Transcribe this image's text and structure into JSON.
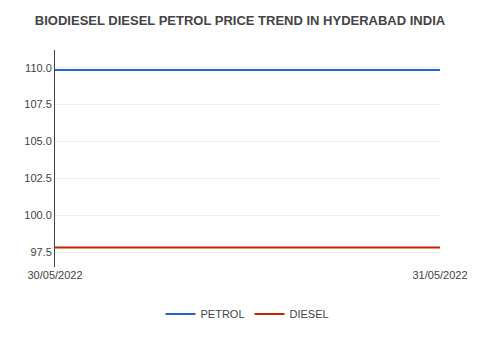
{
  "chart_data": {
    "type": "line",
    "title": "BIODIESEL DIESEL PETROL PRICE TREND IN HYDERABAD INDIA",
    "categories": [
      "30/05/2022",
      "31/05/2022"
    ],
    "series": [
      {
        "name": "PETROL",
        "color": "#2563d4",
        "values": [
          109.84,
          109.84
        ]
      },
      {
        "name": "DIESEL",
        "color": "#cc2200",
        "values": [
          97.82,
          97.82
        ]
      }
    ],
    "ylim": [
      96.5,
      111.2
    ],
    "yticks": [
      97.5,
      {
        "value": 100.0,
        "label": "100.0"
      },
      102.5,
      {
        "value": 105.0,
        "label": "105.0"
      },
      107.5,
      {
        "value": 110.0,
        "label": "110.0"
      }
    ],
    "grid": true,
    "legend": "bottom"
  }
}
